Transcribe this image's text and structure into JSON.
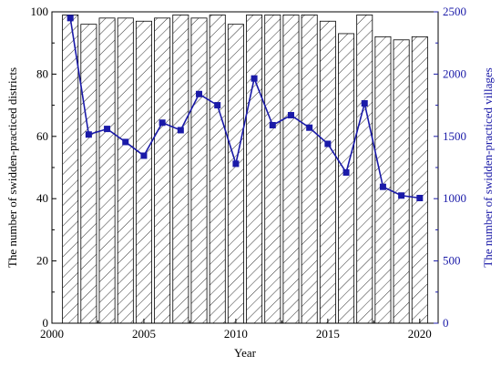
{
  "chart_data": {
    "type": "bar",
    "xlabel": "Year",
    "ylabel_left": "The number of swidden-practiced districts",
    "ylabel_right": "The number of swidden-practiced villages",
    "x": [
      2001,
      2002,
      2003,
      2004,
      2005,
      2006,
      2007,
      2008,
      2009,
      2010,
      2011,
      2012,
      2013,
      2014,
      2015,
      2016,
      2017,
      2018,
      2019,
      2020
    ],
    "xlim": [
      2000,
      2021
    ],
    "xticks": [
      "2000",
      "2005",
      "2010",
      "2015",
      "2020"
    ],
    "ylim_left": [
      0,
      100
    ],
    "yticks_left": [
      "0",
      "20",
      "40",
      "60",
      "80",
      "100"
    ],
    "ylim_right": [
      0,
      2500
    ],
    "yticks_right": [
      "0",
      "500",
      "1000",
      "1500",
      "2000",
      "2500"
    ],
    "series": [
      {
        "type": "bar",
        "axis": "left",
        "fill": "diagonal-hatch",
        "color": "#000000",
        "values": [
          99,
          96,
          98,
          98,
          97,
          98,
          99,
          98,
          99,
          96,
          99,
          99,
          99,
          99,
          97,
          93,
          99,
          92,
          91,
          92
        ]
      },
      {
        "type": "line",
        "axis": "right",
        "marker": "square",
        "color": "#1a1aa8",
        "values": [
          2450,
          1515,
          1560,
          1455,
          1345,
          1610,
          1550,
          1840,
          1750,
          1280,
          1965,
          1590,
          1670,
          1570,
          1440,
          1210,
          1765,
          1095,
          1025,
          1005
        ]
      }
    ],
    "grid": false,
    "legend": "none"
  }
}
